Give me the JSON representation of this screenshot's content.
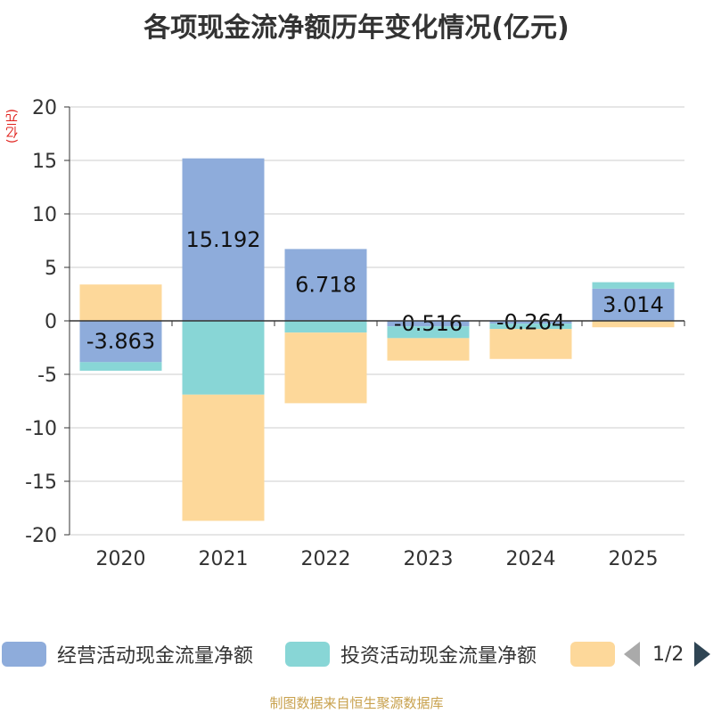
{
  "title": "各项现金流净额历年变化情况(亿元)",
  "unit_label": "(亿元)",
  "colors": {
    "operating": "#8eacdb",
    "investing": "#88d6d6",
    "financing": "#fdd89a",
    "axis": "#333333",
    "grid": "#cccccc",
    "unit": "#e0201b",
    "footer": "#c8a14d"
  },
  "chart_data": {
    "type": "bar",
    "stacked": true,
    "title": "各项现金流净额历年变化情况(亿元)",
    "ylabel": "(亿元)",
    "xlabel": "",
    "ylim": [
      -20,
      20
    ],
    "yticks": [
      20,
      15,
      10,
      5,
      0,
      -5,
      -10,
      -15,
      -20
    ],
    "categories": [
      "2020",
      "2021",
      "2022",
      "2023",
      "2024",
      "2025"
    ],
    "series": [
      {
        "name": "经营活动现金流量净额",
        "values": [
          -3.863,
          15.192,
          6.718,
          -0.516,
          -0.264,
          3.014
        ],
        "labels": [
          "-3.863",
          "15.192",
          "6.718",
          "-0.516",
          "-0.264",
          "3.014"
        ]
      },
      {
        "name": "投资活动现金流量净额",
        "values": [
          -0.8,
          -6.9,
          -1.1,
          -1.1,
          -0.5,
          0.6
        ]
      },
      {
        "name": "",
        "values": [
          3.4,
          -11.8,
          -6.6,
          -2.1,
          -2.8,
          -0.6
        ]
      }
    ]
  },
  "legend": {
    "items": [
      "经营活动现金流量净额",
      "投资活动现金流量净额",
      ""
    ],
    "page": "1/2"
  },
  "footer": "制图数据来自恒生聚源数据库"
}
